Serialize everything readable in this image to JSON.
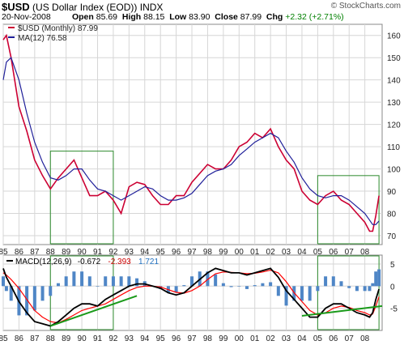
{
  "header": {
    "symbol": "$USD",
    "name": "(US Dollar Index (EOD))",
    "exchange": "INDX",
    "date": "20-Nov-2008",
    "open_label": "Open",
    "open": "85.69",
    "high_label": "High",
    "high": "88.15",
    "low_label": "Low",
    "low": "83.90",
    "close_label": "Close",
    "close": "87.99",
    "chg_label": "Chg",
    "chg": "+2.32 (+2.71%)",
    "brand": "© StockCharts.com"
  },
  "colors": {
    "price": "#cc0033",
    "ma": "#1f1f99",
    "macd": "#000000",
    "signal": "#ff0000",
    "hist": "#4f86c6",
    "box": "#2e8b2e",
    "trend": "#1a9a1a",
    "grid": "#d6d6d6"
  },
  "chart_data": [
    {
      "type": "line",
      "legend": [
        "$USD (Monthly) 87.99",
        "MA(12) 76.58"
      ],
      "x_ticks": [
        "85",
        "86",
        "87",
        "88",
        "89",
        "90",
        "91",
        "92",
        "93",
        "94",
        "95",
        "96",
        "97",
        "98",
        "99",
        "00",
        "01",
        "02",
        "03",
        "04",
        "05",
        "06",
        "07",
        "08"
      ],
      "x": [
        1985.0,
        1985.2,
        1985.5,
        1986.0,
        1986.5,
        1987.0,
        1987.5,
        1988.0,
        1988.5,
        1989.0,
        1989.5,
        1990.0,
        1990.5,
        1991.0,
        1991.5,
        1992.0,
        1992.5,
        1993.0,
        1993.5,
        1994.0,
        1994.5,
        1995.0,
        1995.5,
        1996.0,
        1996.5,
        1997.0,
        1997.5,
        1998.0,
        1998.5,
        1999.0,
        1999.5,
        2000.0,
        2000.5,
        2001.0,
        2001.5,
        2002.0,
        2002.5,
        2003.0,
        2003.5,
        2004.0,
        2004.5,
        2005.0,
        2005.5,
        2006.0,
        2006.5,
        2007.0,
        2007.5,
        2008.0,
        2008.3,
        2008.5,
        2008.7,
        2008.9
      ],
      "series": [
        {
          "name": "$USD (Monthly)",
          "values": [
            158,
            160,
            150,
            128,
            117,
            104,
            97,
            91,
            96,
            100,
            104,
            96,
            88,
            88,
            90,
            86,
            80,
            92,
            94,
            93,
            88,
            84,
            84,
            88,
            88,
            94,
            98,
            102,
            100,
            100,
            104,
            110,
            112,
            116,
            114,
            118,
            110,
            104,
            100,
            90,
            86,
            84,
            88,
            90,
            86,
            84,
            80,
            76,
            72,
            72,
            79,
            88
          ]
        },
        {
          "name": "MA(12)",
          "values": [
            140,
            148,
            150,
            140,
            125,
            112,
            103,
            96,
            95,
            97,
            100,
            100,
            95,
            91,
            90,
            88,
            86,
            88,
            90,
            92,
            91,
            88,
            86,
            86,
            87,
            89,
            93,
            97,
            99,
            100,
            102,
            106,
            109,
            112,
            114,
            116,
            114,
            108,
            103,
            96,
            91,
            88,
            87,
            88,
            88,
            86,
            83,
            80,
            77,
            75,
            75,
            76.58
          ]
        }
      ],
      "y_ticks": [
        70,
        80,
        90,
        100,
        110,
        120,
        130,
        140,
        150,
        160
      ],
      "ylim": [
        66,
        165
      ]
    },
    {
      "type": "line",
      "legend": [
        "MACD(12,26,9)",
        "-0.672",
        "-2.393",
        "1.721"
      ],
      "x": [
        1985.0,
        1985.2,
        1985.5,
        1986.0,
        1986.5,
        1987.0,
        1987.5,
        1988.0,
        1988.5,
        1989.0,
        1989.5,
        1990.0,
        1990.5,
        1991.0,
        1991.5,
        1992.0,
        1992.5,
        1993.0,
        1993.5,
        1994.0,
        1994.5,
        1995.0,
        1995.5,
        1996.0,
        1996.5,
        1997.0,
        1997.5,
        1998.0,
        1998.5,
        1999.0,
        1999.5,
        2000.0,
        2000.5,
        2001.0,
        2001.5,
        2002.0,
        2002.5,
        2003.0,
        2003.5,
        2004.0,
        2004.5,
        2005.0,
        2005.5,
        2006.0,
        2006.5,
        2007.0,
        2007.5,
        2008.0,
        2008.3,
        2008.5,
        2008.7,
        2008.9
      ],
      "series": [
        {
          "name": "MACD",
          "values": [
            4,
            2,
            0,
            -3.5,
            -6,
            -8,
            -8.5,
            -9,
            -8,
            -6.5,
            -5,
            -4,
            -4,
            -4.5,
            -3,
            -2,
            -1,
            0,
            0.5,
            0.5,
            0,
            -0.5,
            -1.5,
            -2,
            -1.5,
            0,
            1.5,
            3,
            4,
            3.5,
            3,
            3,
            2.5,
            3,
            3.5,
            4,
            2,
            -1,
            -3,
            -5,
            -7,
            -7,
            -5,
            -4,
            -4,
            -5,
            -6,
            -6.5,
            -7,
            -6,
            -3,
            -0.672
          ]
        },
        {
          "name": "Signal",
          "values": [
            3,
            2.5,
            1.5,
            -0.5,
            -3,
            -5.5,
            -7,
            -8,
            -8.3,
            -7.5,
            -6.5,
            -5.5,
            -5,
            -4.5,
            -4,
            -3,
            -2,
            -1,
            -0.3,
            0,
            0,
            -0.2,
            -0.8,
            -1.4,
            -1.6,
            -1,
            0,
            1.5,
            2.8,
            3.2,
            3.1,
            3,
            2.8,
            2.9,
            3.2,
            3.6,
            3,
            1,
            -1.5,
            -3.5,
            -5.5,
            -6.5,
            -6,
            -5,
            -4.5,
            -4.8,
            -5.5,
            -6,
            -6.5,
            -6.3,
            -4.5,
            -2.393
          ]
        }
      ],
      "y_ticks": [
        5,
        0,
        -5
      ],
      "ylim": [
        -10,
        7
      ]
    }
  ]
}
